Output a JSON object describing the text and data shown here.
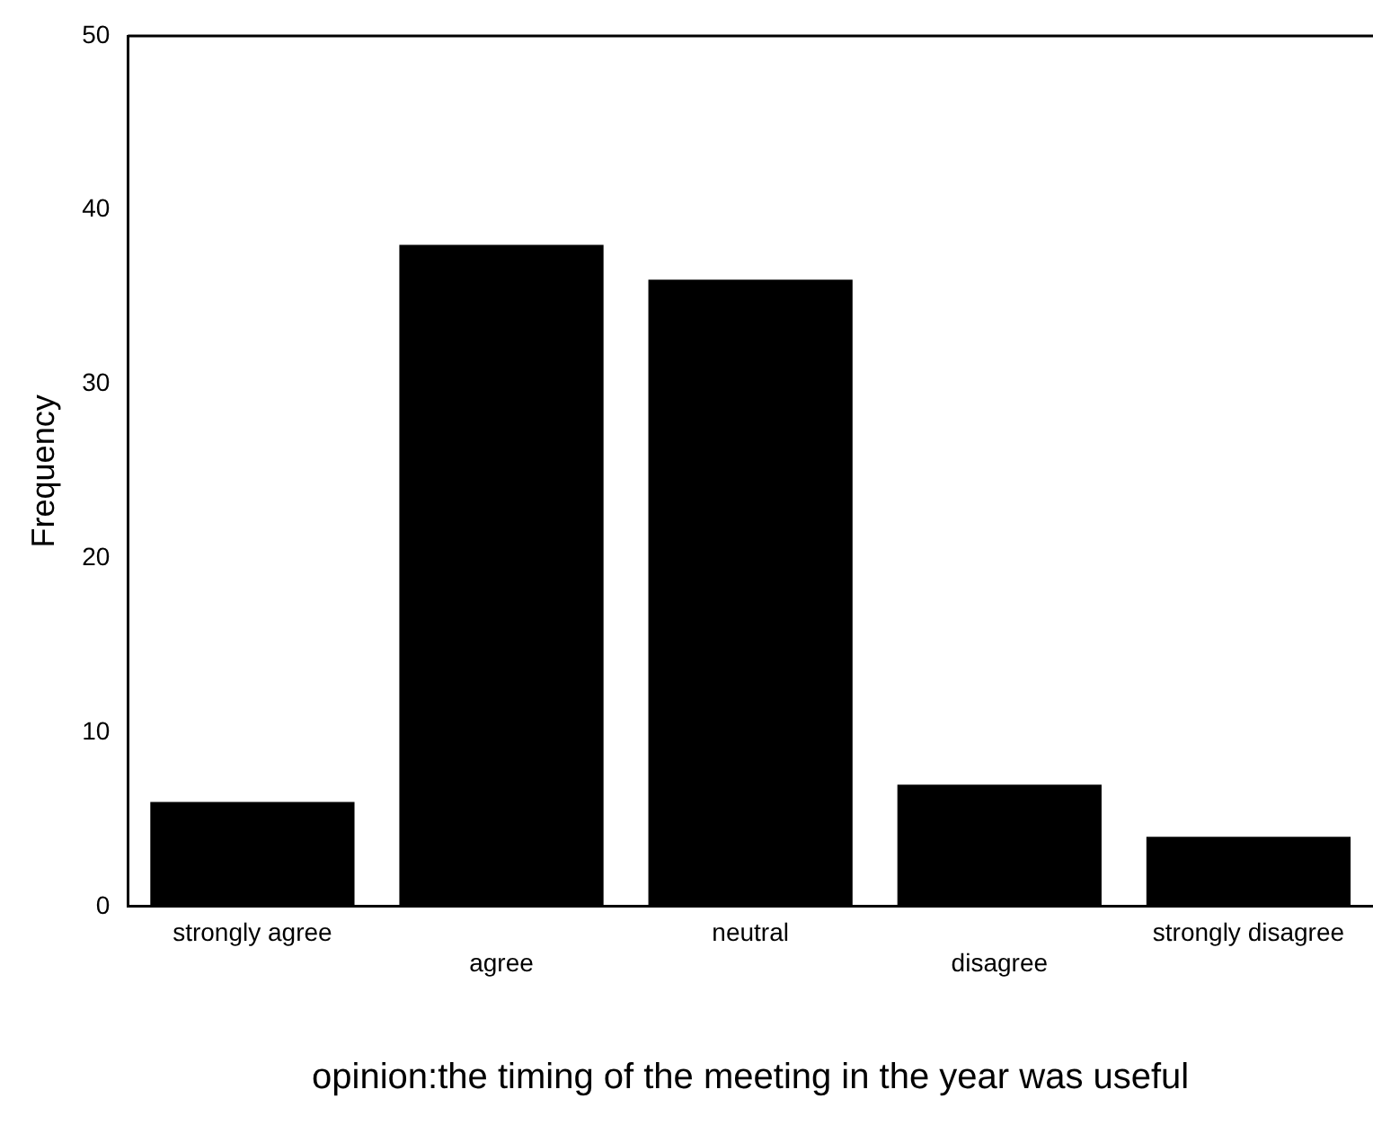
{
  "chart_data": {
    "type": "bar",
    "xlabel": "opinion:the timing of the meeting in the year was useful",
    "ylabel": "Frequency",
    "categories": [
      "strongly agree",
      "agree",
      "neutral",
      "disagree",
      "strongly disagree"
    ],
    "values": [
      6,
      38,
      36,
      7,
      4
    ],
    "color": "#000000",
    "ylim": [
      0,
      50
    ],
    "yticks": [
      0,
      10,
      20,
      30,
      40,
      50
    ],
    "grid": false,
    "legend": false
  }
}
